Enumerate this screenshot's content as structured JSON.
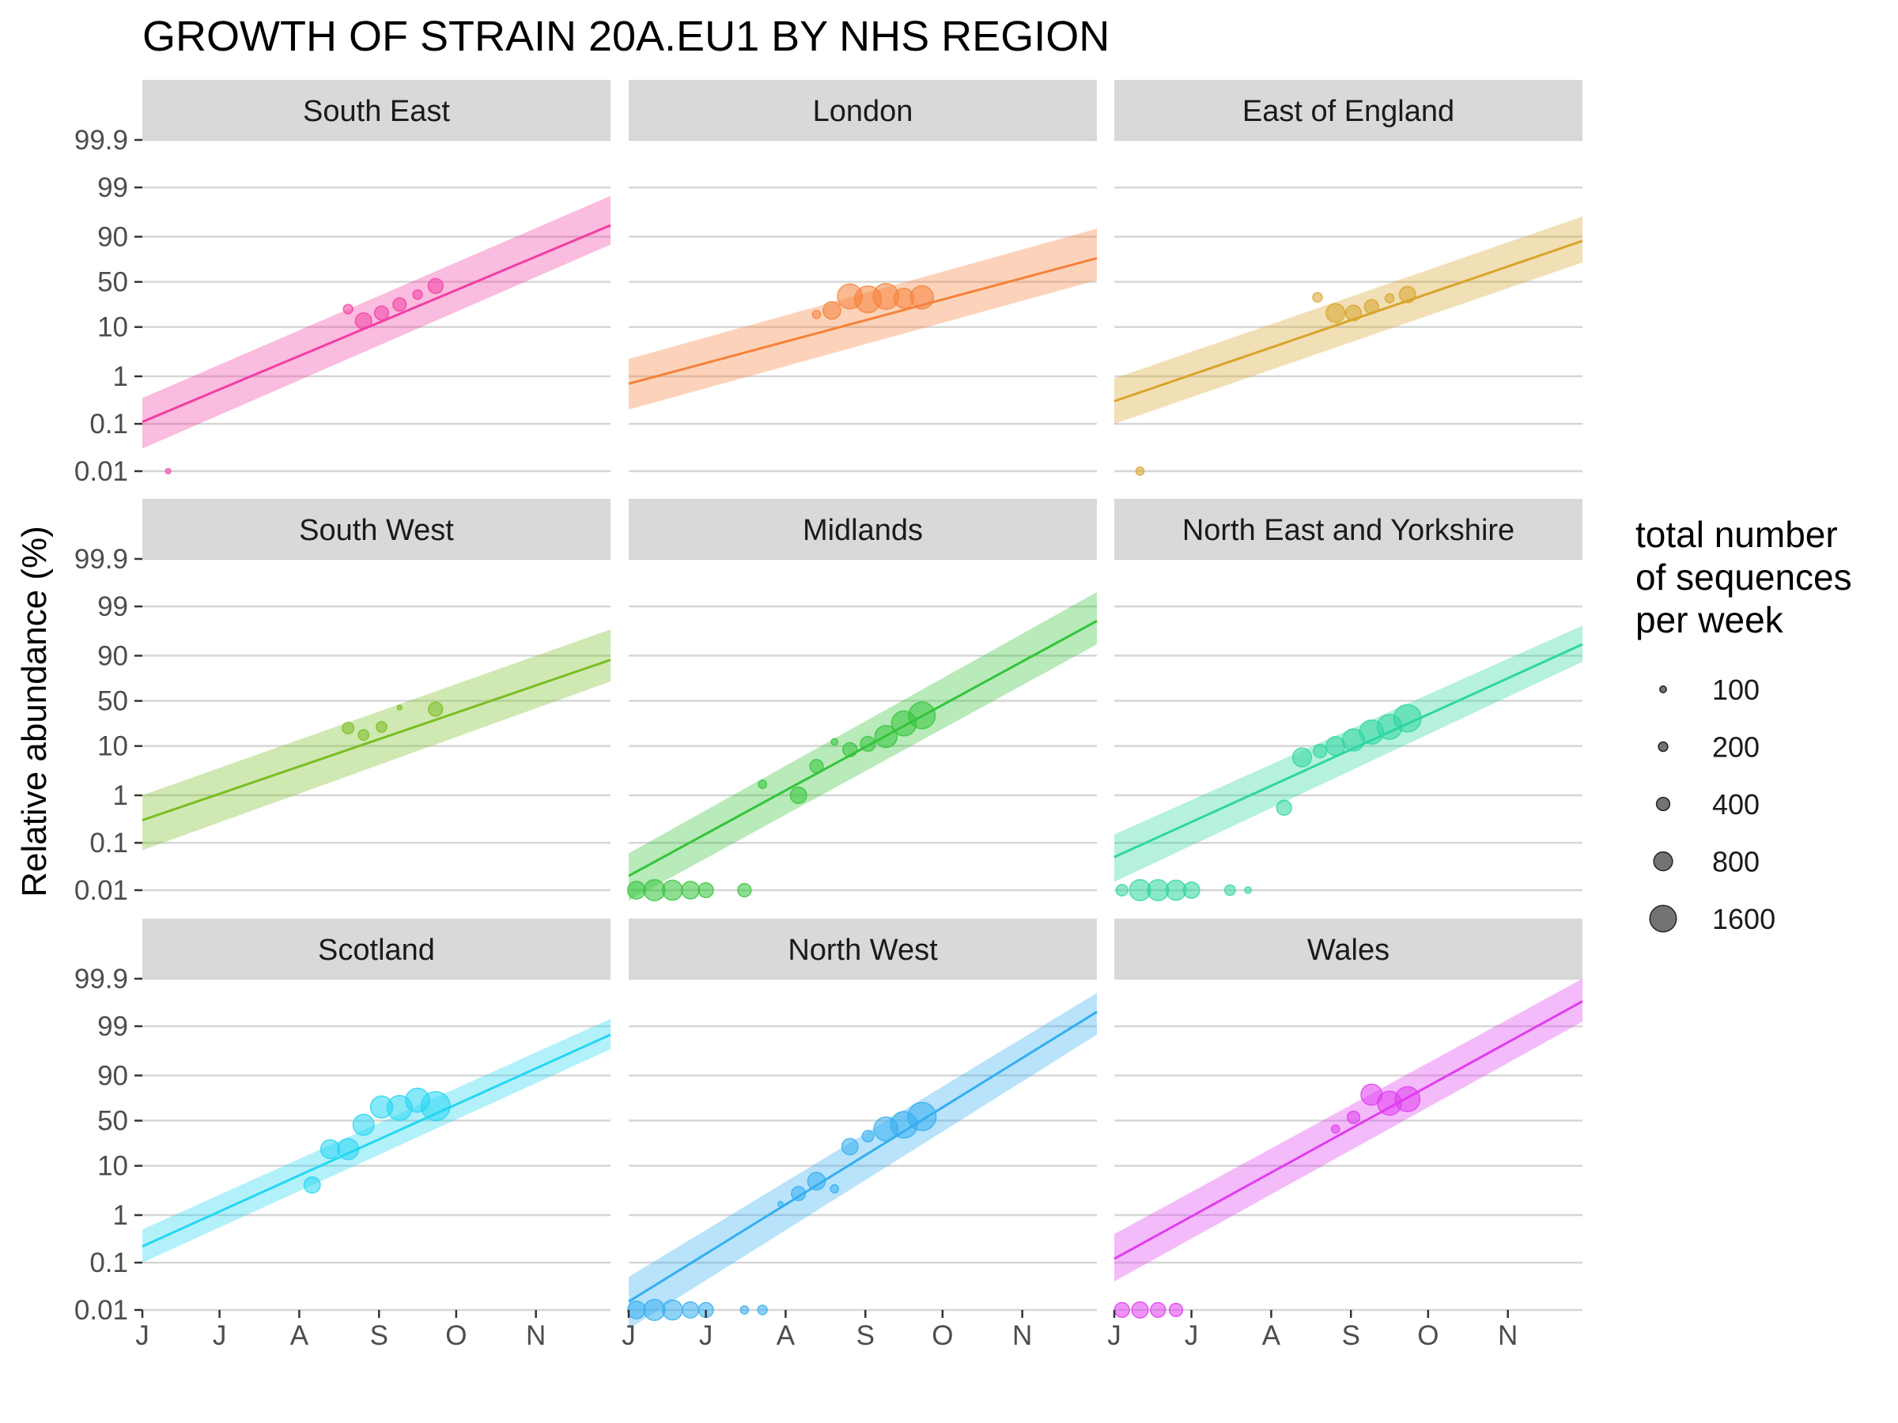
{
  "chart_data": {
    "type": "scatter",
    "title": "GROWTH OF STRAIN 20A.EU1 BY NHS REGION",
    "ylabel": "Relative abundance (%)",
    "xlabel": "",
    "x_ticks": [
      "J",
      "J",
      "A",
      "S",
      "O",
      "N"
    ],
    "x_tick_positions": [
      0,
      30,
      61,
      92,
      122,
      153
    ],
    "x_range_days": [
      0,
      182
    ],
    "y_scale": "logit",
    "y_ticks": [
      "0.01",
      "0.1",
      "1",
      "10",
      "50",
      "90",
      "99",
      "99.9"
    ],
    "y_tick_values": [
      0.01,
      0.1,
      1,
      10,
      50,
      90,
      99,
      99.9
    ],
    "y_range_percent": [
      0.01,
      99.9
    ],
    "grid": true,
    "legend": {
      "title": [
        "total number",
        "of sequences",
        "per week"
      ],
      "position": "right",
      "sizes": [
        100,
        200,
        400,
        800,
        1600
      ],
      "labels": [
        "100",
        "200",
        "400",
        "800",
        "1600"
      ]
    },
    "panels": [
      {
        "region": "South East",
        "color": "#f23ea3",
        "fit_start": 0.11,
        "fit_end": 94,
        "band_start": [
          0.03,
          0.35
        ],
        "band_end": [
          86,
          98.5
        ],
        "points": [
          [
            10,
            0.01,
            60
          ],
          [
            80,
            21,
            200
          ],
          [
            86,
            13,
            600
          ],
          [
            93,
            18,
            450
          ],
          [
            100,
            25,
            400
          ],
          [
            107,
            35,
            200
          ],
          [
            114,
            45,
            500
          ]
        ]
      },
      {
        "region": "London",
        "color": "#f5823a",
        "fit_start": 0.7,
        "fit_end": 76,
        "band_start": [
          0.2,
          2.3
        ],
        "band_end": [
          52,
          93
        ],
        "points": [
          [
            73,
            17,
            150
          ],
          [
            79,
            20,
            700
          ],
          [
            86,
            33,
            1400
          ],
          [
            93,
            30,
            1600
          ],
          [
            100,
            33,
            1500
          ],
          [
            107,
            31,
            900
          ],
          [
            114,
            32,
            1200
          ]
        ]
      },
      {
        "region": "East of England",
        "color": "#d8a42a",
        "fit_start": 0.3,
        "fit_end": 88,
        "band_start": [
          0.1,
          0.9
        ],
        "band_end": [
          72,
          96
        ],
        "points": [
          [
            10,
            0.01,
            150
          ],
          [
            79,
            32,
            200
          ],
          [
            86,
            18,
            800
          ],
          [
            93,
            18,
            550
          ],
          [
            100,
            23,
            450
          ],
          [
            107,
            31,
            180
          ],
          [
            114,
            35,
            600
          ]
        ]
      },
      {
        "region": "South West",
        "color": "#78be21",
        "fit_start": 0.3,
        "fit_end": 88,
        "band_start": [
          0.07,
          1.0
        ],
        "band_end": [
          72,
          97
        ],
        "points": [
          [
            80,
            21,
            300
          ],
          [
            86,
            16,
            250
          ],
          [
            93,
            22,
            250
          ],
          [
            100,
            42,
            50
          ],
          [
            114,
            40,
            450
          ]
        ]
      },
      {
        "region": "Midlands",
        "color": "#33c43a",
        "fit_start": 0.02,
        "fit_end": 98,
        "band_start": [
          0.006,
          0.06
        ],
        "band_end": [
          94,
          99.5
        ],
        "points": [
          [
            3,
            0.01,
            700
          ],
          [
            10,
            0.01,
            1000
          ],
          [
            17,
            0.01,
            900
          ],
          [
            24,
            0.01,
            700
          ],
          [
            30,
            0.01,
            500
          ],
          [
            45,
            0.01,
            400
          ],
          [
            52,
            1.7,
            150
          ],
          [
            66,
            1.0,
            600
          ],
          [
            73,
            4,
            400
          ],
          [
            80,
            12,
            100
          ],
          [
            86,
            8.5,
            450
          ],
          [
            93,
            11,
            500
          ],
          [
            100,
            15,
            1100
          ],
          [
            107,
            25,
            1400
          ],
          [
            114,
            33,
            1600
          ]
        ]
      },
      {
        "region": "North East and Yorkshire",
        "color": "#2ed6a0",
        "fit_start": 0.05,
        "fit_end": 94,
        "band_start": [
          0.015,
          0.15
        ],
        "band_end": [
          87,
          97.5
        ],
        "points": [
          [
            3,
            0.01,
            300
          ],
          [
            10,
            0.01,
            1000
          ],
          [
            17,
            0.01,
            1000
          ],
          [
            24,
            0.01,
            900
          ],
          [
            30,
            0.01,
            600
          ],
          [
            45,
            0.01,
            250
          ],
          [
            52,
            0.01,
            100
          ],
          [
            66,
            0.55,
            500
          ],
          [
            73,
            6,
            800
          ],
          [
            80,
            8,
            400
          ],
          [
            86,
            10,
            800
          ],
          [
            93,
            13,
            1100
          ],
          [
            100,
            18,
            1300
          ],
          [
            107,
            22,
            1400
          ],
          [
            114,
            30,
            1700
          ]
        ]
      },
      {
        "region": "Scotland",
        "color": "#24d6f2",
        "fit_start": 0.22,
        "fit_end": 98.5,
        "band_start": [
          0.1,
          0.5
        ],
        "band_end": [
          97,
          99.3
        ],
        "points": [
          [
            66,
            4.2,
            600
          ],
          [
            73,
            20,
            800
          ],
          [
            80,
            20,
            1000
          ],
          [
            86,
            45,
            1000
          ],
          [
            93,
            66,
            1100
          ],
          [
            100,
            65,
            1400
          ],
          [
            107,
            73,
            1300
          ],
          [
            114,
            67,
            1900
          ]
        ]
      },
      {
        "region": "North West",
        "color": "#34aef0",
        "fit_start": 0.015,
        "fit_end": 99.5,
        "band_start": [
          0.004,
          0.05
        ],
        "band_end": [
          98.5,
          99.8
        ],
        "points": [
          [
            3,
            0.01,
            700
          ],
          [
            10,
            0.01,
            1000
          ],
          [
            17,
            0.01,
            900
          ],
          [
            24,
            0.01,
            600
          ],
          [
            30,
            0.01,
            500
          ],
          [
            45,
            0.01,
            150
          ],
          [
            52,
            0.01,
            200
          ],
          [
            59,
            1.7,
            60
          ],
          [
            66,
            2.8,
            450
          ],
          [
            73,
            5,
            700
          ],
          [
            80,
            3.5,
            150
          ],
          [
            86,
            22,
            600
          ],
          [
            93,
            32,
            300
          ],
          [
            100,
            40,
            1300
          ],
          [
            107,
            45,
            1600
          ],
          [
            114,
            55,
            1800
          ]
        ]
      },
      {
        "region": "Wales",
        "color": "#e03cf0",
        "fit_start": 0.12,
        "fit_end": 99.7,
        "band_start": [
          0.04,
          0.4
        ],
        "band_end": [
          99.2,
          99.9
        ],
        "points": [
          [
            3,
            0.01,
            500
          ],
          [
            10,
            0.01,
            600
          ],
          [
            17,
            0.01,
            500
          ],
          [
            24,
            0.01,
            400
          ],
          [
            86,
            40,
            150
          ],
          [
            93,
            54,
            350
          ],
          [
            100,
            78,
            1000
          ],
          [
            107,
            70,
            1300
          ],
          [
            114,
            74,
            1400
          ]
        ]
      }
    ]
  }
}
